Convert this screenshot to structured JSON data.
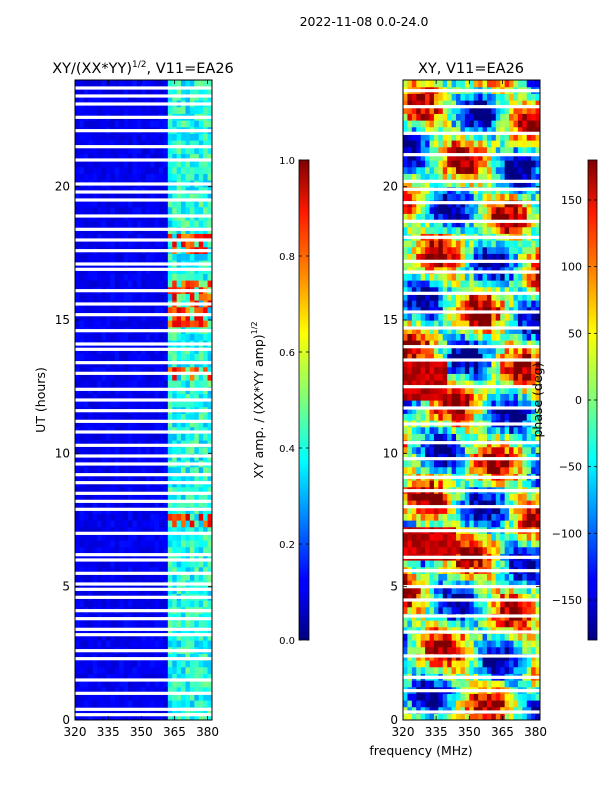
{
  "figure": {
    "suptitle": "2022-11-08 0.0-24.0",
    "xlabel_shared": "frequency (MHz)"
  },
  "chart_data": [
    {
      "type": "heatmap",
      "title": "XY/(XX*YY)^1/2, V11=EA26",
      "title_base": "XY/(XX*YY)",
      "title_sup": "1/2",
      "title_tail": ", V11=EA26",
      "ylabel": "UT (hours)",
      "xlim": [
        320,
        382
      ],
      "ylim": [
        0,
        24
      ],
      "xticks": [
        "320",
        "335",
        "350",
        "365",
        "380"
      ],
      "xtick_values": [
        320,
        335,
        350,
        365,
        380
      ],
      "yticks": [
        "0",
        "5",
        "10",
        "15",
        "20"
      ],
      "ytick_values": [
        0,
        5,
        10,
        15,
        20
      ],
      "colormap": "jet",
      "colorbar": {
        "label": "XY amp. / (XX*YY amp)^1/2",
        "label_base": "XY amp. / (XX*YY amp)",
        "label_sup": "1/2",
        "range": [
          0.0,
          1.0
        ],
        "ticks": [
          "0.0",
          "0.2",
          "0.4",
          "0.6",
          "0.8",
          "1.0"
        ],
        "tick_values": [
          0.0,
          0.2,
          0.4,
          0.6,
          0.8,
          1.0
        ]
      },
      "features": {
        "bright_band_freq_mhz": [
          363,
          381
        ],
        "hot_spot_ut": [
          [
            7.2,
            7.8
          ],
          [
            14.8,
            16.6
          ],
          [
            12.7,
            13.2
          ],
          [
            17.5,
            18.3
          ]
        ],
        "flagged_rows_ut": [
          0.2,
          0.4,
          1.0,
          1.5,
          2.3,
          2.6,
          3.2,
          3.4,
          3.8,
          4.1,
          4.6,
          4.9,
          5.1,
          5.5,
          6.0,
          6.2,
          7.0,
          7.9,
          8.2,
          8.5,
          8.9,
          9.2,
          9.6,
          9.9,
          10.3,
          10.8,
          11.2,
          11.6,
          12.0,
          12.4,
          13.0,
          13.4,
          13.9,
          14.1,
          14.6,
          15.2,
          15.6,
          16.1,
          16.9,
          17.1,
          17.6,
          18.0,
          18.4,
          18.9,
          19.5,
          19.8,
          20.1,
          21.0,
          21.5,
          22.1,
          22.6,
          23.1,
          23.4,
          23.7
        ]
      }
    },
    {
      "type": "heatmap",
      "title": "XY, V11=EA26",
      "ylabel": "",
      "xlim": [
        320,
        382
      ],
      "ylim": [
        0,
        24
      ],
      "xticks": [
        "320",
        "335",
        "350",
        "365",
        "380"
      ],
      "xtick_values": [
        320,
        335,
        350,
        365,
        380
      ],
      "yticks": [
        "0",
        "5",
        "10",
        "15",
        "20"
      ],
      "ytick_values": [
        0,
        5,
        10,
        15,
        20
      ],
      "colormap": "jet",
      "colorbar": {
        "label": "phase (deg)",
        "range": [
          -180,
          180
        ],
        "ticks": [
          "−150",
          "−100",
          "−50",
          "0",
          "50",
          "100",
          "150"
        ],
        "tick_values": [
          -150,
          -100,
          -50,
          0,
          50,
          100,
          150
        ]
      },
      "features": {
        "flagged_rows_ut": [
          0.3,
          1.1,
          1.6,
          2.4,
          3.3,
          3.9,
          4.5,
          5.0,
          5.6,
          6.1,
          7.1,
          8.0,
          8.6,
          9.1,
          9.8,
          10.4,
          11.1,
          11.7,
          12.5,
          13.5,
          14.0,
          14.7,
          15.3,
          16.0,
          16.8,
          17.2,
          18.1,
          18.7,
          19.4,
          19.9,
          20.2,
          21.2,
          22.0,
          23.0,
          23.6
        ]
      }
    }
  ]
}
